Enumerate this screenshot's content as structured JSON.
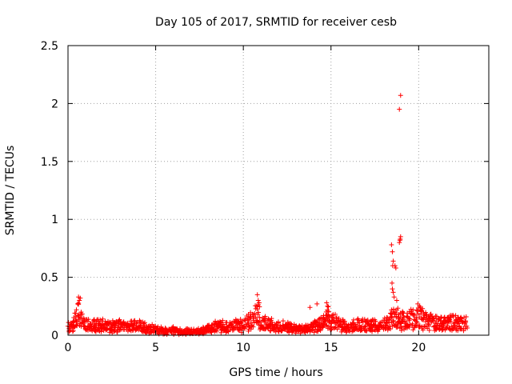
{
  "chart_data": {
    "type": "scatter",
    "title": "Day 105 of 2017, SRMTID for receiver cesb",
    "xlabel": "GPS time / hours",
    "ylabel": "SRMTID / TECUs",
    "xlim": [
      0,
      24
    ],
    "ylim": [
      0,
      2.5
    ],
    "grid": true,
    "x_ticks": [
      0,
      5,
      10,
      15,
      20
    ],
    "x_tick_labels": [
      "0",
      "5",
      "10",
      "15",
      "20"
    ],
    "y_ticks": [
      0,
      0.5,
      1,
      1.5,
      2,
      2.5
    ],
    "y_tick_labels": [
      "0",
      "0.5",
      "1",
      "1.5",
      "2",
      "2.5"
    ],
    "marker": "+",
    "color": "#ff0000",
    "series": [
      {
        "name": "SRMTID",
        "baseline": [
          [
            0.0,
            0.06
          ],
          [
            0.3,
            0.08
          ],
          [
            0.5,
            0.15
          ],
          [
            0.65,
            0.22
          ],
          [
            0.8,
            0.12
          ],
          [
            1.0,
            0.08
          ],
          [
            1.5,
            0.09
          ],
          [
            2.0,
            0.08
          ],
          [
            2.5,
            0.07
          ],
          [
            3.0,
            0.09
          ],
          [
            3.5,
            0.07
          ],
          [
            4.0,
            0.09
          ],
          [
            4.5,
            0.06
          ],
          [
            5.0,
            0.05
          ],
          [
            5.5,
            0.04
          ],
          [
            6.0,
            0.04
          ],
          [
            6.5,
            0.03
          ],
          [
            7.0,
            0.03
          ],
          [
            7.5,
            0.03
          ],
          [
            8.0,
            0.05
          ],
          [
            8.5,
            0.08
          ],
          [
            9.0,
            0.07
          ],
          [
            9.5,
            0.08
          ],
          [
            10.0,
            0.09
          ],
          [
            10.5,
            0.13
          ],
          [
            10.8,
            0.18
          ],
          [
            11.2,
            0.1
          ],
          [
            12.0,
            0.08
          ],
          [
            12.5,
            0.07
          ],
          [
            13.0,
            0.06
          ],
          [
            13.5,
            0.05
          ],
          [
            14.0,
            0.07
          ],
          [
            14.5,
            0.1
          ],
          [
            14.8,
            0.15
          ],
          [
            15.5,
            0.08
          ],
          [
            16.0,
            0.08
          ],
          [
            17.0,
            0.09
          ],
          [
            17.8,
            0.08
          ],
          [
            18.2,
            0.1
          ],
          [
            18.6,
            0.16
          ],
          [
            19.0,
            0.12
          ],
          [
            19.5,
            0.14
          ],
          [
            20.0,
            0.15
          ],
          [
            20.5,
            0.12
          ],
          [
            21.0,
            0.1
          ],
          [
            21.5,
            0.1
          ],
          [
            22.0,
            0.11
          ],
          [
            22.5,
            0.11
          ],
          [
            22.8,
            0.1
          ]
        ],
        "outliers": [
          [
            18.45,
            0.78
          ],
          [
            18.5,
            0.72
          ],
          [
            18.55,
            0.64
          ],
          [
            18.52,
            0.6
          ],
          [
            18.48,
            0.45
          ],
          [
            18.5,
            0.4
          ],
          [
            18.55,
            0.37
          ],
          [
            18.6,
            0.33
          ],
          [
            18.65,
            0.6
          ],
          [
            18.7,
            0.58
          ],
          [
            18.75,
            0.3
          ],
          [
            18.9,
            0.8
          ],
          [
            18.95,
            0.83
          ],
          [
            18.97,
            0.85
          ],
          [
            18.93,
            0.82
          ],
          [
            18.9,
            1.95
          ],
          [
            18.97,
            2.07
          ],
          [
            0.6,
            0.33
          ],
          [
            0.65,
            0.3
          ],
          [
            0.7,
            0.32
          ],
          [
            0.55,
            0.27
          ],
          [
            10.8,
            0.35
          ],
          [
            10.85,
            0.3
          ],
          [
            10.9,
            0.28
          ],
          [
            14.2,
            0.27
          ],
          [
            14.75,
            0.28
          ],
          [
            14.8,
            0.25
          ],
          [
            13.8,
            0.24
          ],
          [
            19.95,
            0.27
          ],
          [
            20.05,
            0.25
          ]
        ]
      }
    ]
  }
}
